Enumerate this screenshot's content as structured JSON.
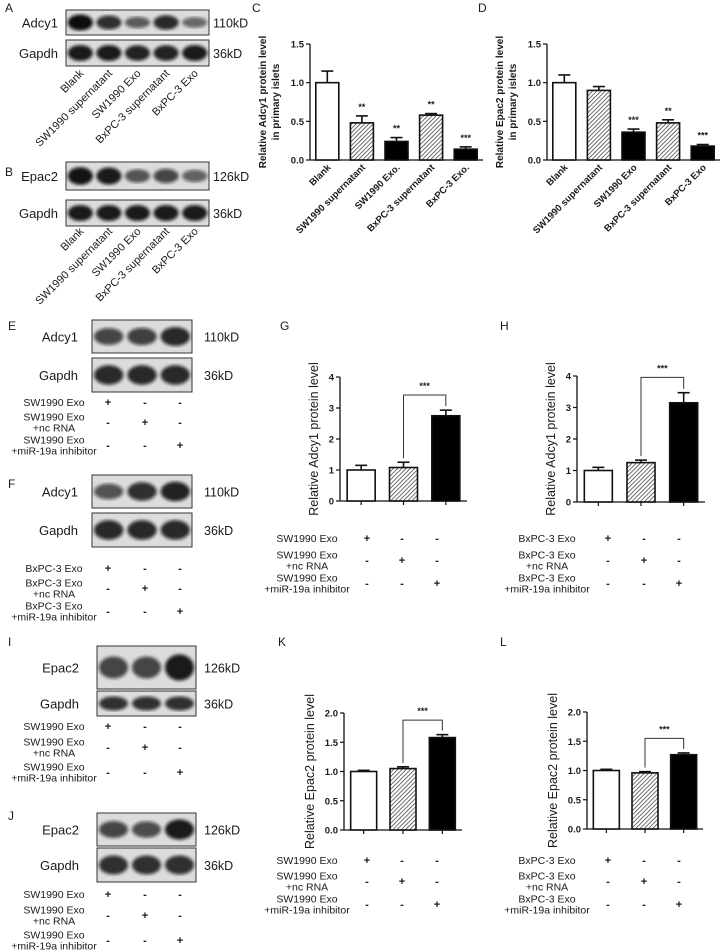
{
  "blots": [
    {
      "letter": "A",
      "lanes": [
        "Blank",
        "SW1990 supernatant",
        "SW1990 Exo",
        "BxPC-3 supernatant",
        "BxPC-3 Exo"
      ],
      "rows": [
        {
          "protein": "Adcy1",
          "size": "110kD",
          "intensity": [
            1.0,
            0.75,
            0.45,
            0.8,
            0.35
          ]
        },
        {
          "protein": "Gapdh",
          "size": "36kD",
          "intensity": [
            0.9,
            0.9,
            0.85,
            0.85,
            0.9
          ]
        }
      ]
    },
    {
      "letter": "B",
      "lanes": [
        "Blank",
        "SW1990 supernatant",
        "SW1990 Exo",
        "BxPC-3 supernatant",
        "BxPC-3 Exo"
      ],
      "rows": [
        {
          "protein": "Epac2",
          "size": "126kD",
          "intensity": [
            0.95,
            0.9,
            0.5,
            0.6,
            0.4
          ]
        },
        {
          "protein": "Gapdh",
          "size": "36kD",
          "intensity": [
            0.9,
            0.9,
            0.9,
            0.9,
            0.9
          ]
        }
      ]
    },
    {
      "letter": "E",
      "rows": [
        {
          "protein": "Adcy1",
          "size": "110kD",
          "intensity": [
            0.6,
            0.65,
            0.8
          ]
        },
        {
          "protein": "Gapdh",
          "size": "36kD",
          "intensity": [
            0.8,
            0.8,
            0.8
          ]
        }
      ],
      "conditions": [
        {
          "label": [
            "SW1990 Exo"
          ],
          "signs": [
            "+",
            "-",
            "-"
          ]
        },
        {
          "label": [
            "SW1990 Exo",
            "+nc RNA"
          ],
          "signs": [
            "-",
            "+",
            "-"
          ]
        },
        {
          "label": [
            "SW1990 Exo",
            "+miR-19a inhibitor"
          ],
          "signs": [
            "-",
            "-",
            "+"
          ]
        }
      ]
    },
    {
      "letter": "F",
      "rows": [
        {
          "protein": "Adcy1",
          "size": "110kD",
          "intensity": [
            0.5,
            0.75,
            0.85
          ]
        },
        {
          "protein": "Gapdh",
          "size": "36kD",
          "intensity": [
            0.8,
            0.8,
            0.8
          ]
        }
      ],
      "conditions": [
        {
          "label": [
            "BxPC-3 Exo"
          ],
          "signs": [
            "+",
            "-",
            "-"
          ]
        },
        {
          "label": [
            "BxPC-3 Exo",
            "+nc RNA"
          ],
          "signs": [
            "-",
            "+",
            "-"
          ]
        },
        {
          "label": [
            "BxPC-3 Exo",
            "+miR-19a inhibitor"
          ],
          "signs": [
            "-",
            "-",
            "+"
          ]
        }
      ]
    },
    {
      "letter": "I",
      "rows": [
        {
          "protein": "Epac2",
          "size": "126kD",
          "intensity": [
            0.6,
            0.6,
            0.9
          ]
        },
        {
          "protein": "Gapdh",
          "size": "36kD",
          "intensity": [
            0.75,
            0.75,
            0.75
          ]
        }
      ],
      "conditions": [
        {
          "label": [
            "SW1990 Exo"
          ],
          "signs": [
            "+",
            "-",
            "-"
          ]
        },
        {
          "label": [
            "SW1990 Exo",
            "+nc RNA"
          ],
          "signs": [
            "-",
            "+",
            "-"
          ]
        },
        {
          "label": [
            "SW1990 Exo",
            "+miR-19a inhibitor"
          ],
          "signs": [
            "-",
            "-",
            "+"
          ]
        }
      ]
    },
    {
      "letter": "J",
      "rows": [
        {
          "protein": "Epac2",
          "size": "126kD",
          "intensity": [
            0.6,
            0.55,
            0.9
          ]
        },
        {
          "protein": "Gapdh",
          "size": "36kD",
          "intensity": [
            0.75,
            0.75,
            0.75
          ]
        }
      ],
      "conditions": [
        {
          "label": [
            "SW1990 Exo"
          ],
          "signs": [
            "+",
            "-",
            "-"
          ]
        },
        {
          "label": [
            "SW1990 Exo",
            "+nc RNA"
          ],
          "signs": [
            "-",
            "+",
            "-"
          ]
        },
        {
          "label": [
            "SW1990 Exo",
            "+miR-19a inhibitor"
          ],
          "signs": [
            "-",
            "-",
            "+"
          ]
        }
      ]
    }
  ],
  "chart_data": [
    {
      "letter": "C",
      "type": "bar",
      "ylabel": [
        "Relative Adcy1 protein level",
        "in primary islets"
      ],
      "categories": [
        "Blank",
        "SW1990 supernatant",
        "SW1990 Exo.",
        "BxPC-3 supernatant",
        "BxPC-3 Exo."
      ],
      "values": [
        1.0,
        0.48,
        0.24,
        0.58,
        0.14
      ],
      "errors": [
        0.15,
        0.09,
        0.05,
        0.02,
        0.03
      ],
      "significance": [
        "",
        "**",
        "**",
        "**",
        "***"
      ],
      "fills": [
        "white",
        "hatched",
        "black",
        "hatched",
        "black"
      ],
      "ylim": [
        0,
        1.5
      ],
      "yticks": [
        "0.0",
        "0.5",
        "1.0",
        "1.5"
      ],
      "grid": false
    },
    {
      "letter": "D",
      "type": "bar",
      "ylabel": [
        "Relative Epac2 protein level",
        "in primary islets"
      ],
      "categories": [
        "Blank",
        "SW1990 supernatant",
        "SW1990 Exo",
        "BxPC-3 supernatant",
        "BxPC-3 Exo"
      ],
      "values": [
        1.0,
        0.9,
        0.36,
        0.48,
        0.18
      ],
      "errors": [
        0.1,
        0.05,
        0.04,
        0.04,
        0.02
      ],
      "significance": [
        "",
        "",
        "***",
        "**",
        "***"
      ],
      "fills": [
        "white",
        "hatched",
        "black",
        "hatched",
        "black"
      ],
      "ylim": [
        0,
        1.5
      ],
      "yticks": [
        "0.0",
        "0.5",
        "1.0",
        "1.5"
      ],
      "grid": false
    },
    {
      "letter": "G",
      "type": "bar",
      "ylabel": [
        "Relative Adcy1 protein level"
      ],
      "values": [
        1.0,
        1.08,
        2.75
      ],
      "errors": [
        0.15,
        0.17,
        0.18
      ],
      "fills": [
        "white",
        "hatched",
        "black"
      ],
      "bracket": {
        "from": 1,
        "to": 2,
        "label": "***"
      },
      "ylim": [
        0,
        4
      ],
      "yticks": [
        "0",
        "1",
        "2",
        "3",
        "4"
      ],
      "grid": false,
      "conditions": [
        {
          "label": [
            "SW1990 Exo"
          ],
          "signs": [
            "+",
            "-",
            "-"
          ]
        },
        {
          "label": [
            "SW1990 Exo",
            "+nc RNA"
          ],
          "signs": [
            "-",
            "+",
            "-"
          ]
        },
        {
          "label": [
            "SW1990 Exo",
            "+miR-19a inhibitor"
          ],
          "signs": [
            "-",
            "-",
            "+"
          ]
        }
      ]
    },
    {
      "letter": "H",
      "type": "bar",
      "ylabel": [
        "Relative Adcy1 protein level"
      ],
      "values": [
        1.0,
        1.25,
        3.15
      ],
      "errors": [
        0.1,
        0.08,
        0.32
      ],
      "fills": [
        "white",
        "hatched",
        "black"
      ],
      "bracket": {
        "from": 1,
        "to": 2,
        "label": "***"
      },
      "ylim": [
        0,
        4
      ],
      "yticks": [
        "0",
        "1",
        "2",
        "3",
        "4"
      ],
      "grid": false,
      "conditions": [
        {
          "label": [
            "BxPC-3 Exo"
          ],
          "signs": [
            "+",
            "-",
            "-"
          ]
        },
        {
          "label": [
            "BxPC-3 Exo",
            "+nc RNA"
          ],
          "signs": [
            "-",
            "+",
            "-"
          ]
        },
        {
          "label": [
            "BxPC-3 Exo",
            "+miR-19a inhibitor"
          ],
          "signs": [
            "-",
            "-",
            "+"
          ]
        }
      ]
    },
    {
      "letter": "K",
      "type": "bar",
      "ylabel": [
        "Relative Epac2 protein level"
      ],
      "values": [
        1.0,
        1.05,
        1.58
      ],
      "errors": [
        0.02,
        0.03,
        0.05
      ],
      "fills": [
        "white",
        "hatched",
        "black"
      ],
      "bracket": {
        "from": 1,
        "to": 2,
        "label": "***"
      },
      "ylim": [
        0,
        2
      ],
      "yticks": [
        "0.0",
        "0.5",
        "1.0",
        "1.5",
        "2.0"
      ],
      "grid": false,
      "conditions": [
        {
          "label": [
            "SW1990 Exo"
          ],
          "signs": [
            "+",
            "-",
            "-"
          ]
        },
        {
          "label": [
            "SW1990 Exo",
            "+nc RNA"
          ],
          "signs": [
            "-",
            "+",
            "-"
          ]
        },
        {
          "label": [
            "SW1990 Exo",
            "+miR-19a inhibitor"
          ],
          "signs": [
            "-",
            "-",
            "+"
          ]
        }
      ]
    },
    {
      "letter": "L",
      "type": "bar",
      "ylabel": [
        "Relative Epac2 protein level"
      ],
      "values": [
        1.0,
        0.96,
        1.27
      ],
      "errors": [
        0.02,
        0.02,
        0.03
      ],
      "fills": [
        "white",
        "hatched",
        "black"
      ],
      "bracket": {
        "from": 1,
        "to": 2,
        "label": "***"
      },
      "ylim": [
        0,
        2
      ],
      "yticks": [
        "0.0",
        "0.5",
        "1.0",
        "1.5",
        "2.0"
      ],
      "grid": false,
      "conditions": [
        {
          "label": [
            "BxPC-3 Exo"
          ],
          "signs": [
            "+",
            "-",
            "-"
          ]
        },
        {
          "label": [
            "BxPC-3 Exo",
            "+nc RNA"
          ],
          "signs": [
            "-",
            "+",
            "-"
          ]
        },
        {
          "label": [
            "BxPC-3 Exo",
            "+miR-19a inhibitor"
          ],
          "signs": [
            "-",
            "-",
            "+"
          ]
        }
      ]
    }
  ]
}
